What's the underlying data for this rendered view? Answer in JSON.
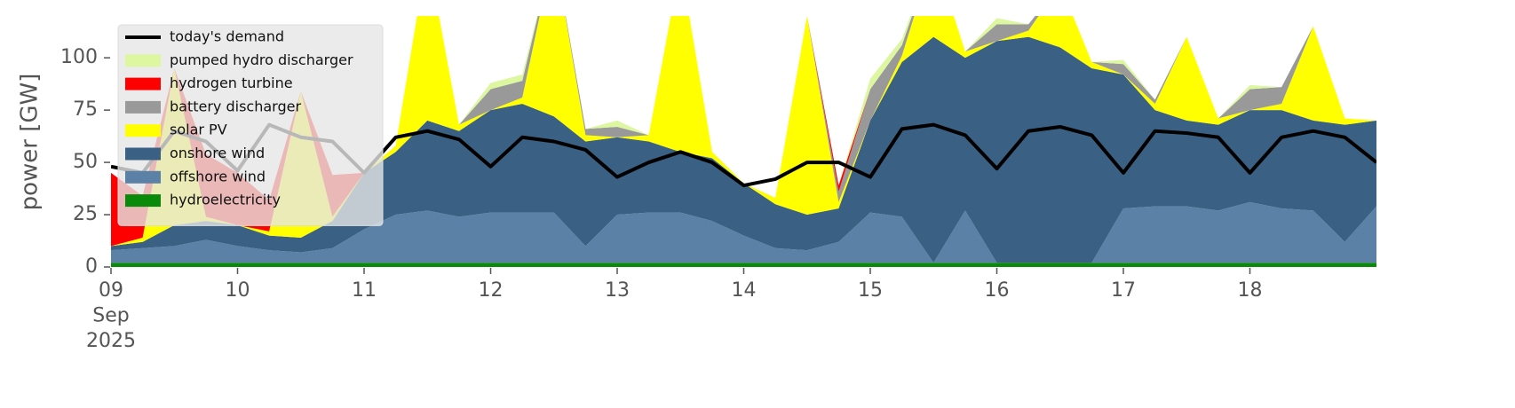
{
  "chart_data": {
    "type": "area",
    "ylabel": "power [GW]",
    "xlim": [
      9,
      19
    ],
    "xticks": [
      {
        "value": 9,
        "label": "09\nSep\n2025"
      },
      10,
      11,
      12,
      13,
      14,
      15,
      16,
      17,
      18
    ],
    "ylim": [
      0,
      120
    ],
    "yticks": [
      0,
      25,
      50,
      75,
      100
    ],
    "legend": "upper left",
    "x": [
      9,
      9.25,
      9.5,
      9.75,
      10,
      10.25,
      10.5,
      10.75,
      11,
      11.25,
      11.5,
      11.75,
      12,
      12.25,
      12.5,
      12.75,
      13,
      13.25,
      13.5,
      13.75,
      14,
      14.25,
      14.5,
      14.75,
      15,
      15.25,
      15.5,
      15.75,
      16,
      16.25,
      16.5,
      16.75,
      17,
      17.25,
      17.5,
      17.75,
      18,
      18.25,
      18.5,
      18.75,
      19
    ],
    "series": [
      {
        "name": "hydroelectricity",
        "color": "#0a8a0a",
        "values": [
          2,
          2,
          2,
          2,
          2,
          2,
          2,
          2,
          2,
          2,
          2,
          2,
          2,
          2,
          2,
          2,
          2,
          2,
          2,
          2,
          2,
          2,
          2,
          2,
          2,
          2,
          2,
          2,
          2,
          2,
          2,
          2,
          2,
          2,
          2,
          2,
          2,
          2,
          2,
          2,
          2
        ]
      },
      {
        "name": "offshore wind",
        "color": "#5b82a6",
        "values": [
          6,
          7,
          8,
          11,
          8,
          6,
          5,
          7,
          16,
          23,
          25,
          22,
          24,
          24,
          24,
          8,
          23,
          24,
          24,
          20,
          13,
          7,
          6,
          10,
          24,
          22,
          0,
          25,
          0,
          0,
          0,
          0,
          26,
          27,
          27,
          25,
          29,
          26,
          25,
          10,
          27
        ]
      },
      {
        "name": "onshore wind",
        "color": "#3a6183",
        "values": [
          2,
          3,
          10,
          9,
          10,
          7,
          7,
          13,
          27,
          30,
          43,
          41,
          49,
          52,
          46,
          50,
          37,
          34,
          29,
          30,
          25,
          21,
          17,
          16,
          44,
          74,
          108,
          73,
          106,
          108,
          103,
          93,
          64,
          46,
          41,
          41,
          44,
          47,
          43,
          56,
          41
        ]
      },
      {
        "name": "solar PV",
        "color": "#ffff00",
        "values": [
          0,
          2,
          75,
          2,
          0,
          2,
          70,
          2,
          0,
          3,
          80,
          3,
          0,
          3,
          80,
          3,
          0,
          3,
          90,
          3,
          0,
          3,
          95,
          3,
          0,
          3,
          40,
          3,
          0,
          3,
          30,
          3,
          0,
          3,
          40,
          3,
          0,
          3,
          45,
          3,
          0
        ]
      },
      {
        "name": "battery discharger",
        "color": "#999999",
        "values": [
          0,
          0,
          0,
          0,
          0,
          0,
          0,
          0,
          0,
          0,
          0,
          0,
          10,
          8,
          0,
          3,
          5,
          0,
          0,
          0,
          0,
          0,
          0,
          5,
          15,
          5,
          0,
          0,
          8,
          3,
          0,
          0,
          5,
          2,
          0,
          0,
          10,
          8,
          0,
          0,
          0
        ]
      },
      {
        "name": "hydrogen turbine",
        "color": "#ff0000",
        "values": [
          35,
          20,
          0,
          30,
          25,
          15,
          0,
          20,
          0,
          0,
          0,
          0,
          0,
          0,
          0,
          0,
          0,
          0,
          0,
          0,
          0,
          0,
          0,
          3,
          0,
          0,
          0,
          0,
          0,
          0,
          0,
          0,
          0,
          0,
          0,
          0,
          0,
          0,
          0,
          0,
          0
        ]
      },
      {
        "name": "pumped hydro discharger",
        "color": "#dcf7a0",
        "values": [
          0,
          0,
          0,
          0,
          0,
          0,
          0,
          0,
          0,
          0,
          0,
          0,
          3,
          3,
          0,
          0,
          3,
          0,
          0,
          0,
          0,
          0,
          0,
          0,
          5,
          3,
          0,
          0,
          3,
          0,
          0,
          0,
          2,
          0,
          0,
          0,
          2,
          0,
          0,
          0,
          0
        ]
      }
    ],
    "line_series": [
      {
        "name": "today's demand",
        "color": "#000000",
        "values": [
          48,
          45,
          65,
          60,
          46,
          68,
          62,
          60,
          45,
          62,
          65,
          61,
          48,
          62,
          60,
          56,
          43,
          50,
          55,
          50,
          39,
          42,
          50,
          50,
          43,
          66,
          68,
          63,
          47,
          65,
          67,
          63,
          45,
          65,
          64,
          62,
          45,
          62,
          65,
          62,
          50
        ]
      }
    ]
  }
}
